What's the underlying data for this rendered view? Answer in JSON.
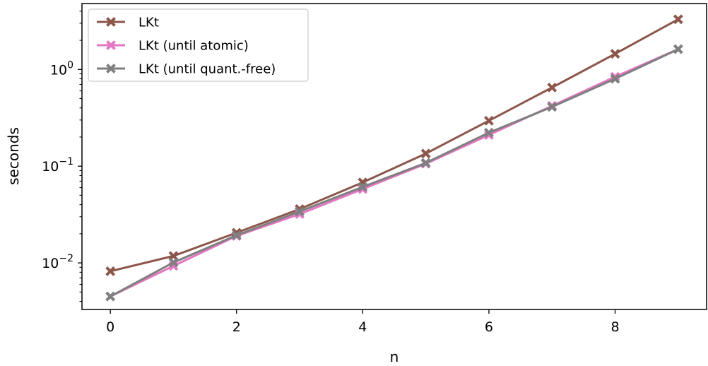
{
  "chart_data": {
    "type": "line",
    "xlabel": "n",
    "ylabel": "seconds",
    "yscale": "log",
    "xlim": [
      -0.45,
      9.45
    ],
    "ylim": [
      0.0033,
      4.8
    ],
    "x_ticks": [
      {
        "value": 0,
        "label": "0"
      },
      {
        "value": 2,
        "label": "2"
      },
      {
        "value": 4,
        "label": "4"
      },
      {
        "value": 6,
        "label": "6"
      },
      {
        "value": 8,
        "label": "8"
      }
    ],
    "y_ticks": [
      {
        "value": 0.01,
        "base": "10",
        "exp": "−2"
      },
      {
        "value": 0.1,
        "base": "10",
        "exp": "−1"
      },
      {
        "value": 1,
        "base": "10",
        "exp": "0"
      }
    ],
    "grid": false,
    "legend_position": "upper-left",
    "x": [
      0,
      1,
      2,
      3,
      4,
      5,
      6,
      7,
      8,
      9
    ],
    "series": [
      {
        "name": "LKt",
        "color": "#8c564b",
        "marker": "x",
        "values": [
          0.0082,
          0.0118,
          0.0205,
          0.036,
          0.068,
          0.135,
          0.295,
          0.65,
          1.45,
          3.3
        ]
      },
      {
        "name": "LKt (until atomic)",
        "color": "#e377c2",
        "marker": "x",
        "values": [
          0.0045,
          0.0093,
          0.019,
          0.032,
          0.058,
          0.106,
          0.21,
          0.42,
          0.84,
          1.62
        ]
      },
      {
        "name": "LKt (until quant.-free)",
        "color": "#7f7f7f",
        "marker": "x",
        "values": [
          0.0045,
          0.0101,
          0.0193,
          0.034,
          0.061,
          0.108,
          0.222,
          0.41,
          0.8,
          1.62
        ]
      }
    ]
  }
}
